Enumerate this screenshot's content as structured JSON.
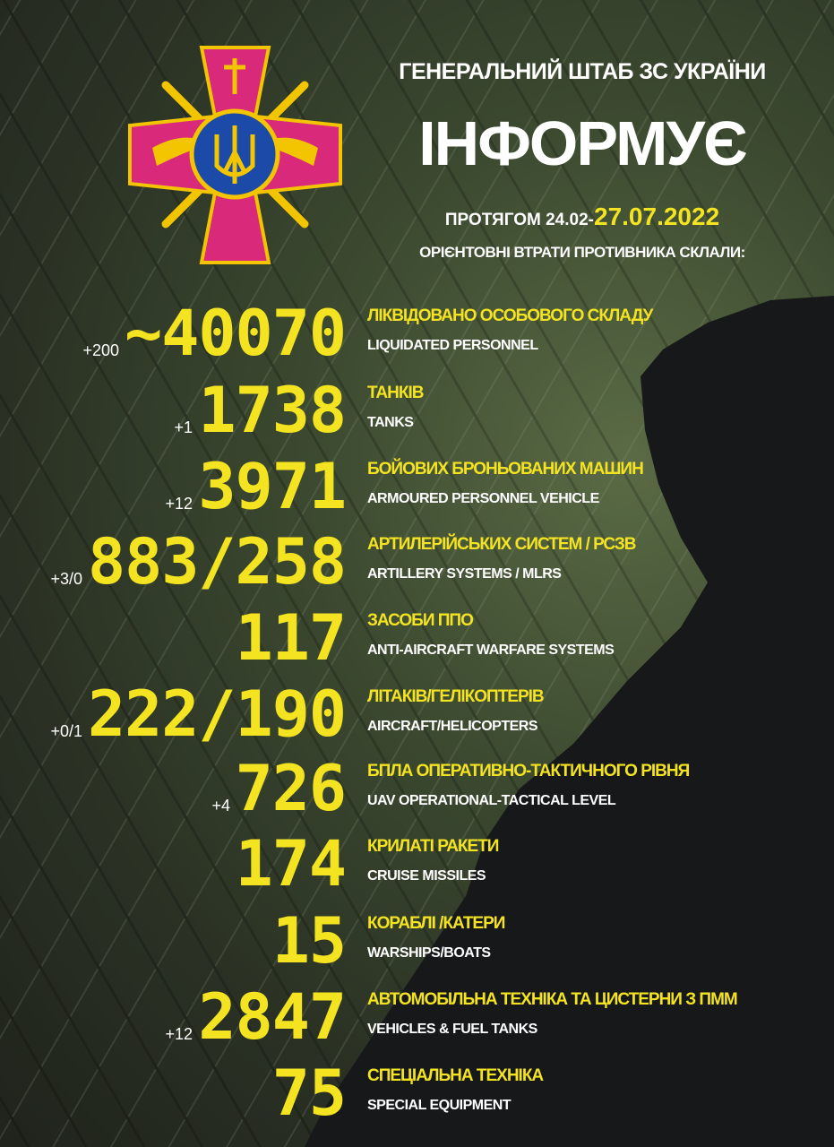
{
  "header": {
    "line1": "ГЕНЕРАЛЬНИЙ ШТАБ ЗС УКРАЇНИ",
    "line2": "ІНФОРМУЄ",
    "period_prefix": "ПРОТЯГОМ 24.02-",
    "period_date": "27.07.2022",
    "subtitle": "ОРІЄНТОВНІ ВТРАТИ ПРОТИВНИКА СКЛАЛИ:"
  },
  "colors": {
    "accent": "#f3e321",
    "emblem_cross": "#d8297a",
    "emblem_gold": "#f2c500",
    "emblem_shield": "#1b4aa8"
  },
  "emblem_icon": "armed-forces-of-ukraine-emblem",
  "rows": [
    {
      "value": "~40070",
      "delta": "+200",
      "label": "ЛІКВІДОВАНО ОСОБОВОГО СКЛАДУ",
      "sub": "LIQUIDATED PERSONNEL"
    },
    {
      "value": "1738",
      "delta": "+1",
      "label": "ТАНКІВ",
      "sub": "TANKS"
    },
    {
      "value": "3971",
      "delta": "+12",
      "label": "БОЙОВИХ БРОНЬОВАНИХ МАШИН",
      "sub": "ARMOURED PERSONNEL VEHICLE"
    },
    {
      "value": "883/258",
      "delta": "+3/0",
      "label": "АРТИЛЕРІЙСЬКИХ СИСТЕМ / РСЗВ",
      "sub": "ARTILLERY SYSTEMS / MLRS"
    },
    {
      "value": "117",
      "delta": "",
      "label": "ЗАСОБИ ППО",
      "sub": "ANTI-AIRCRAFT WARFARE SYSTEMS"
    },
    {
      "value": "222/190",
      "delta": "+0/1",
      "label": "ЛІТАКІВ/ГЕЛІКОПТЕРІВ",
      "sub": "AIRCRAFT/HELICOPTERS"
    },
    {
      "value": "726",
      "delta": "+4",
      "label": "БПЛА ОПЕРАТИВНО-ТАКТИЧНОГО РІВНЯ",
      "sub": "UAV OPERATIONAL-TACTICAL LEVEL"
    },
    {
      "value": "174",
      "delta": "",
      "label": "КРИЛАТІ РАКЕТИ",
      "sub": "CRUISE MISSILES"
    },
    {
      "value": "15",
      "delta": "",
      "label": "КОРАБЛІ /КАТЕРИ",
      "sub": "WARSHIPS/BOATS"
    },
    {
      "value": "2847",
      "delta": "+12",
      "label": "АВТОМОБІЛЬНА ТЕХНІКА ТА ЦИСТЕРНИ З ПММ",
      "sub": "VEHICLES  & FUEL TANKS"
    },
    {
      "value": "75",
      "delta": "",
      "label": "СПЕЦІАЛЬНА ТЕХНІКА",
      "sub": "SPECIAL EQUIPMENT"
    }
  ]
}
